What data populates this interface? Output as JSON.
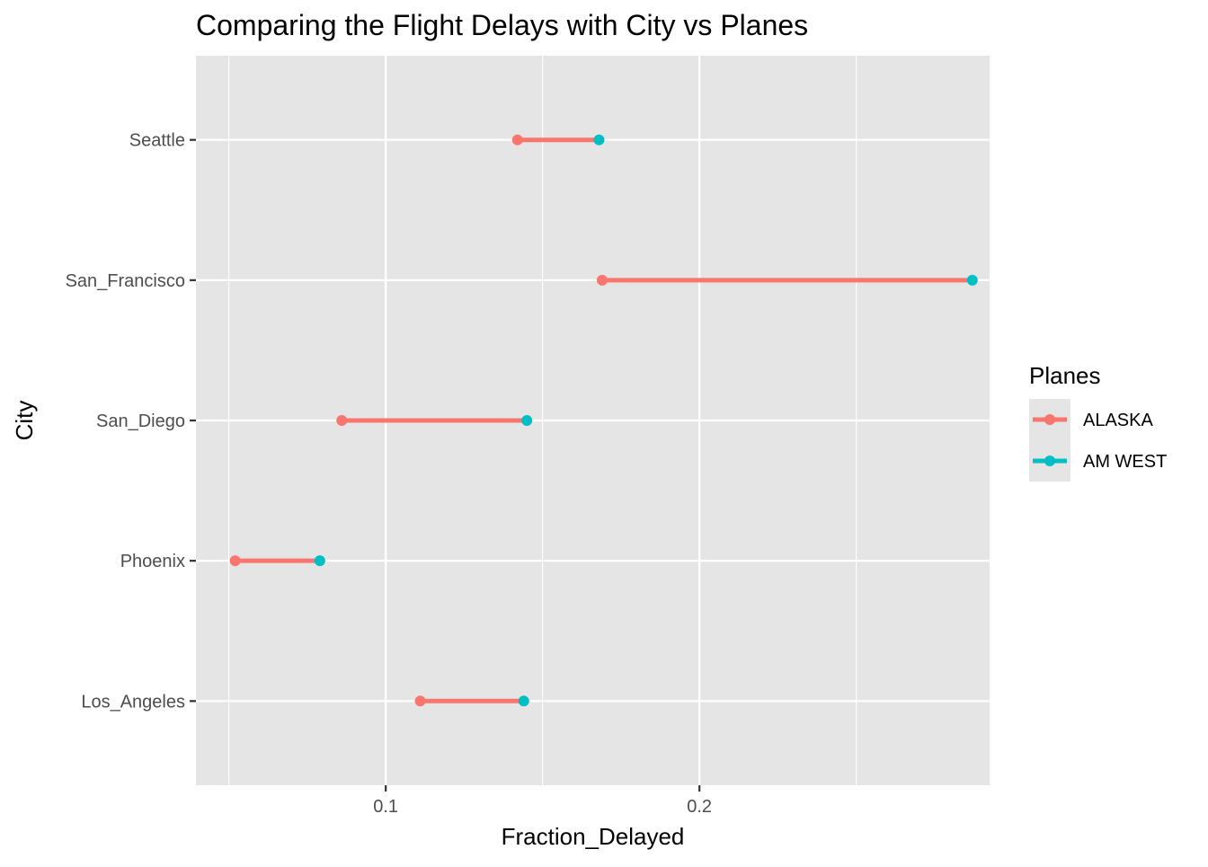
{
  "chart_data": {
    "type": "dumbbell",
    "title": "Comparing the Flight Delays with City vs Planes",
    "xlabel": "Fraction_Delayed",
    "ylabel": "City",
    "categories": [
      "Los_Angeles",
      "Phoenix",
      "San_Diego",
      "San_Francisco",
      "Seattle"
    ],
    "series": [
      {
        "name": "ALASKA",
        "color": "#F8766D",
        "values": [
          0.111,
          0.052,
          0.086,
          0.169,
          0.142
        ]
      },
      {
        "name": "AM WEST",
        "color": "#00BFC4",
        "values": [
          0.144,
          0.079,
          0.145,
          0.287,
          0.168
        ]
      }
    ],
    "segment_color": "#F8766D",
    "xlim": [
      0.0395,
      0.2925
    ],
    "x_ticks": [
      0.1,
      0.2
    ],
    "x_tick_labels": [
      "0.1",
      "0.2"
    ],
    "grid": true,
    "legend": {
      "title": "Planes",
      "position": "right"
    },
    "background": "#E5E5E5"
  }
}
